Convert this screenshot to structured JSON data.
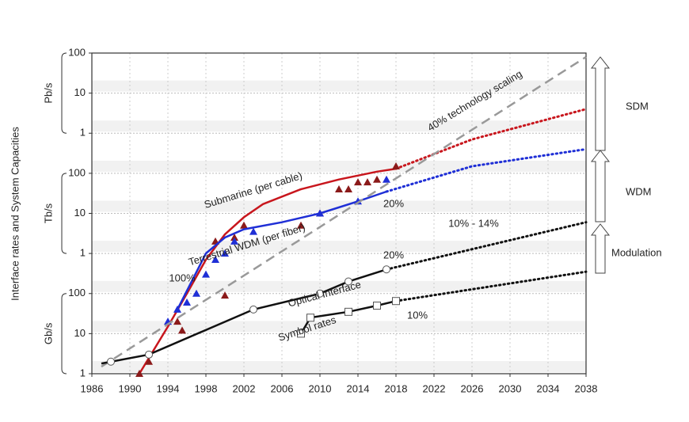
{
  "chart_data": {
    "type": "line",
    "log_scale": true,
    "grid": true,
    "y_label": "Interface rates and System Capacities",
    "units": [
      "Gb/s",
      "Tb/s",
      "Pb/s"
    ],
    "xlim": [
      1986,
      2038
    ],
    "xticks": [
      1986,
      1990,
      1994,
      1998,
      2002,
      2006,
      2010,
      2014,
      2018,
      2022,
      2026,
      2030,
      2034,
      2038
    ],
    "ylim": [
      1,
      100000000
    ],
    "yticks": [
      1,
      10,
      100,
      {
        "value": 1000,
        "label": "1"
      },
      {
        "value": 10000,
        "label": "10"
      },
      {
        "value": 100000,
        "label": "100"
      },
      {
        "value": 1000000,
        "label": "1"
      },
      {
        "value": 10000000,
        "label": "10"
      },
      {
        "value": 100000000,
        "label": "100"
      }
    ],
    "series": [
      {
        "name": "Submarine (per cable)",
        "color": "#c8161d",
        "dash": "none",
        "x": [
          1991,
          1994,
          1996,
          1998,
          2000,
          2002,
          2004,
          2008,
          2012,
          2016,
          2018
        ],
        "values": [
          1,
          15,
          100,
          700,
          3000,
          8000,
          17000,
          40000,
          70000,
          110000,
          130000
        ],
        "markers": {
          "shape": "triangle",
          "color": "#8b1a1a",
          "x": [
            1991,
            1992,
            1995,
            1995.5,
            1999,
            2000,
            2001,
            2002,
            2008,
            2010,
            2012,
            2013,
            2014,
            2015,
            2016,
            2018
          ],
          "values": [
            1,
            2,
            20,
            12,
            2000,
            90,
            2500,
            5000,
            5000,
            10000,
            40000,
            40000,
            60000,
            60000,
            70000,
            150000
          ]
        },
        "projection": {
          "x": [
            2018,
            2026,
            2038
          ],
          "values": [
            130000,
            700000,
            4000000
          ]
        }
      },
      {
        "name": "Terrestrial WDM (per fiber)",
        "color": "#1f2fd6",
        "dash": "none",
        "x": [
          1995,
          1998,
          2000,
          2002,
          2006,
          2010,
          2014,
          2017
        ],
        "values": [
          40,
          1000,
          2500,
          4000,
          6000,
          10000,
          20000,
          35000
        ],
        "markers": {
          "shape": "triangle",
          "color": "#1f2fd6",
          "x": [
            1994,
            1995,
            1996,
            1997,
            1998,
            1999,
            2000,
            2001,
            2003,
            2010,
            2014,
            2017
          ],
          "values": [
            20,
            40,
            60,
            100,
            300,
            700,
            1000,
            2000,
            3500,
            10000,
            20000,
            70000
          ]
        },
        "projection": {
          "x": [
            2017,
            2026,
            2038
          ],
          "values": [
            35000,
            150000,
            400000
          ]
        }
      },
      {
        "name": "40% technology scaling",
        "color": "#999999",
        "dash": "12 7",
        "x": [
          1987,
          2038
        ],
        "values": [
          1.5,
          80000000
        ]
      },
      {
        "name": "Optical Interface",
        "color": "#111111",
        "dash": "none",
        "x": [
          1987,
          1992,
          2003,
          2010,
          2013,
          2017
        ],
        "values": [
          1.8,
          3,
          40,
          100,
          200,
          400
        ],
        "markers": {
          "shape": "circle",
          "color": "#555555",
          "x": [
            1988,
            1992,
            2003,
            2010,
            2013,
            2017
          ],
          "values": [
            2,
            3,
            40,
            100,
            200,
            400
          ]
        },
        "projection": {
          "x": [
            2017,
            2038
          ],
          "values": [
            400,
            6000
          ]
        }
      },
      {
        "name": "Symbol rates",
        "color": "#111111",
        "dash": "none",
        "x": [
          2008,
          2009,
          2013,
          2016,
          2018
        ],
        "values": [
          10,
          25,
          35,
          50,
          65
        ],
        "markers": {
          "shape": "square",
          "color": "#555555",
          "x": [
            2008,
            2009,
            2013,
            2016,
            2018
          ],
          "values": [
            10,
            25,
            35,
            50,
            65
          ]
        },
        "projection": {
          "x": [
            2018,
            2038
          ],
          "values": [
            65,
            350
          ]
        }
      }
    ],
    "annotations": [
      {
        "text": "100%",
        "color": "#1f2fd6"
      },
      {
        "text": "20%",
        "color": "#1f2fd6"
      },
      {
        "text": "10% - 14%",
        "color": "#111111"
      },
      {
        "text": "20%",
        "color": "#111111"
      },
      {
        "text": "10%",
        "color": "#111111"
      }
    ],
    "right_labels": [
      "SDM",
      "WDM",
      "Modulation"
    ]
  }
}
